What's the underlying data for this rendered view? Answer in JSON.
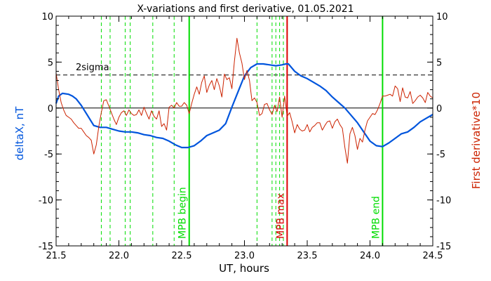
{
  "chart_data": {
    "type": "line",
    "title": "X-variations and first derivative, 01.05.2021",
    "xlabel": "UT, hours",
    "ylabel_left": "deltaX, nT",
    "ylabel_right": "First derivative*10",
    "xlim": [
      21.5,
      24.5
    ],
    "ylim": [
      -15,
      10
    ],
    "x_ticks": [
      21.5,
      22.0,
      22.5,
      23.0,
      23.5,
      24.0,
      24.5
    ],
    "x_tick_labels": [
      "21.5",
      "22.0",
      "22.5",
      "23.0",
      "23.5",
      "24.0",
      "24.5"
    ],
    "y_ticks": [
      -15,
      -10,
      -5,
      0,
      5,
      10
    ],
    "y_tick_labels": [
      "-15",
      "-10",
      "-5",
      "0",
      "5",
      "10"
    ],
    "two_sigma": {
      "label": "2sigma",
      "value": 3.6
    },
    "colors": {
      "deltaX": "#0055dd",
      "derivative": "#cc2200",
      "green": "#00dd00",
      "red": "#dd0000",
      "axis": "#000000"
    },
    "series": [
      {
        "key": "deltaX",
        "x": [
          21.5,
          21.52,
          21.55,
          21.6,
          21.63,
          21.66,
          21.7,
          21.75,
          21.8,
          21.85,
          21.9,
          21.95,
          22.0,
          22.05,
          22.1,
          22.15,
          22.2,
          22.25,
          22.3,
          22.35,
          22.4,
          22.45,
          22.5,
          22.55,
          22.6,
          22.65,
          22.7,
          22.75,
          22.8,
          22.85,
          22.9,
          22.95,
          23.0,
          23.05,
          23.1,
          23.15,
          23.2,
          23.25,
          23.3,
          23.33,
          23.35,
          23.4,
          23.45,
          23.5,
          23.55,
          23.6,
          23.65,
          23.7,
          23.75,
          23.8,
          23.85,
          23.9,
          23.95,
          24.0,
          24.05,
          24.1,
          24.15,
          24.2,
          24.25,
          24.3,
          24.35,
          24.4,
          24.45,
          24.5
        ],
        "y": [
          0.5,
          1.3,
          1.6,
          1.5,
          1.3,
          1.0,
          0.3,
          -0.8,
          -1.9,
          -2.1,
          -2.1,
          -2.3,
          -2.5,
          -2.6,
          -2.6,
          -2.7,
          -2.9,
          -3.0,
          -3.2,
          -3.3,
          -3.6,
          -4.0,
          -4.3,
          -4.3,
          -4.1,
          -3.6,
          -3.0,
          -2.7,
          -2.4,
          -1.7,
          0.1,
          1.8,
          3.5,
          4.4,
          4.8,
          4.8,
          4.7,
          4.6,
          4.7,
          4.8,
          4.8,
          4.0,
          3.5,
          3.2,
          2.8,
          2.4,
          1.9,
          1.2,
          0.6,
          0.0,
          -0.8,
          -1.6,
          -2.6,
          -3.6,
          -4.1,
          -4.2,
          -3.8,
          -3.3,
          -2.8,
          -2.6,
          -2.1,
          -1.5,
          -1.1,
          -0.7
        ]
      },
      {
        "key": "derivative",
        "x": [
          21.5,
          21.52,
          21.54,
          21.56,
          21.58,
          21.6,
          21.62,
          21.64,
          21.66,
          21.68,
          21.7,
          21.72,
          21.74,
          21.76,
          21.78,
          21.8,
          21.82,
          21.84,
          21.86,
          21.88,
          21.9,
          21.92,
          21.94,
          21.96,
          21.98,
          22.0,
          22.02,
          22.04,
          22.06,
          22.08,
          22.1,
          22.12,
          22.14,
          22.16,
          22.18,
          22.2,
          22.22,
          22.24,
          22.26,
          22.28,
          22.3,
          22.32,
          22.34,
          22.36,
          22.38,
          22.4,
          22.42,
          22.44,
          22.46,
          22.48,
          22.5,
          22.52,
          22.54,
          22.56,
          22.58,
          22.6,
          22.62,
          22.64,
          22.66,
          22.68,
          22.7,
          22.72,
          22.74,
          22.76,
          22.78,
          22.8,
          22.82,
          22.84,
          22.86,
          22.88,
          22.9,
          22.92,
          22.94,
          22.96,
          22.98,
          23.0,
          23.02,
          23.04,
          23.06,
          23.08,
          23.1,
          23.12,
          23.14,
          23.16,
          23.18,
          23.2,
          23.22,
          23.24,
          23.26,
          23.28,
          23.3,
          23.32,
          23.34,
          23.36,
          23.38,
          23.4,
          23.42,
          23.44,
          23.46,
          23.48,
          23.5,
          23.52,
          23.54,
          23.56,
          23.58,
          23.6,
          23.62,
          23.64,
          23.66,
          23.68,
          23.7,
          23.72,
          23.74,
          23.76,
          23.78,
          23.8,
          23.82,
          23.84,
          23.86,
          23.88,
          23.9,
          23.92,
          23.94,
          23.96,
          23.98,
          24.0,
          24.02,
          24.04,
          24.06,
          24.08,
          24.1,
          24.12,
          24.14,
          24.16,
          24.18,
          24.2,
          24.22,
          24.24,
          24.26,
          24.28,
          24.3,
          24.32,
          24.34,
          24.36,
          24.38,
          24.4,
          24.42,
          24.44,
          24.46,
          24.48,
          24.5
        ],
        "y": [
          3.8,
          2.0,
          0.6,
          -0.2,
          -0.8,
          -1.0,
          -1.2,
          -1.6,
          -1.9,
          -2.2,
          -2.2,
          -2.6,
          -3.0,
          -3.2,
          -3.5,
          -5.0,
          -4.0,
          -2.0,
          -0.5,
          0.8,
          0.9,
          0.2,
          -0.5,
          -1.2,
          -1.8,
          -1.0,
          -0.5,
          -0.3,
          -0.8,
          -0.2,
          -0.6,
          -0.8,
          -0.7,
          -0.2,
          -0.8,
          0.1,
          -0.6,
          -1.2,
          -0.3,
          -0.9,
          -1.2,
          -0.3,
          -2.0,
          -1.7,
          -2.4,
          0.1,
          0.3,
          0.0,
          0.6,
          0.2,
          0.2,
          0.6,
          0.3,
          -0.6,
          0.5,
          1.5,
          2.3,
          1.5,
          2.8,
          3.5,
          1.7,
          2.5,
          3.0,
          2.0,
          3.2,
          2.4,
          1.2,
          3.7,
          3.1,
          3.3,
          2.1,
          5.1,
          7.6,
          6.0,
          4.9,
          3.1,
          4.1,
          3.0,
          0.8,
          1.1,
          0.6,
          -0.8,
          -0.6,
          0.4,
          0.5,
          -0.2,
          -0.7,
          0.3,
          -0.4,
          1.2,
          -1.0,
          1.3,
          -0.9,
          -0.5,
          -1.5,
          -2.7,
          -1.8,
          -2.3,
          -2.5,
          -2.4,
          -1.8,
          -2.6,
          -2.1,
          -1.9,
          -1.6,
          -1.6,
          -2.4,
          -1.9,
          -1.5,
          -1.4,
          -2.2,
          -1.5,
          -1.2,
          -1.8,
          -2.2,
          -4.3,
          -6.0,
          -2.8,
          -2.1,
          -3.0,
          -4.5,
          -3.3,
          -3.7,
          -2.4,
          -1.4,
          -1.0,
          -0.6,
          -0.7,
          -0.2,
          0.5,
          1.3,
          1.3,
          1.4,
          1.5,
          1.3,
          2.4,
          2.1,
          0.7,
          2.2,
          1.2,
          1.1,
          1.8,
          0.5,
          0.8,
          1.2,
          1.4,
          1.1,
          0.6,
          1.7,
          1.3,
          1.1
        ]
      }
    ],
    "dashed_green_lines": [
      21.86,
      21.93,
      22.05,
      22.09,
      22.27,
      22.44,
      23.1,
      23.22,
      23.25,
      23.28,
      23.31
    ],
    "solid_markers": [
      {
        "x": 22.56,
        "label": "MPB begin",
        "color": "#00dd00"
      },
      {
        "x": 23.34,
        "label": "MPB max",
        "color": "#dd0000"
      },
      {
        "x": 24.1,
        "label": "MPB end",
        "color": "#00dd00"
      }
    ]
  }
}
